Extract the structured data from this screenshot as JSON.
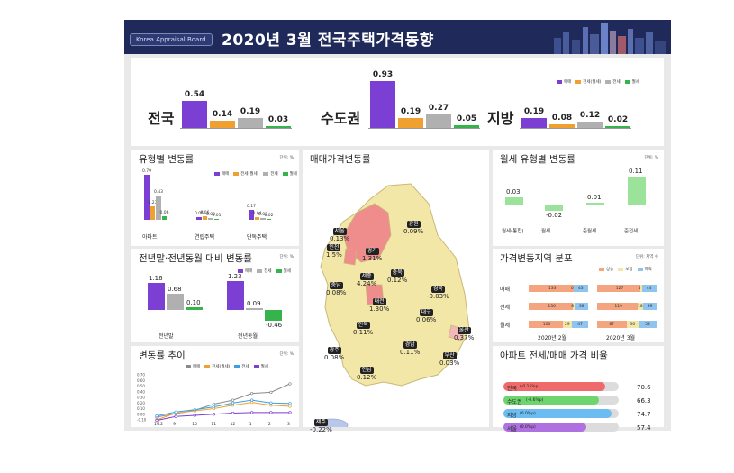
{
  "header": {
    "brand": "Korea Appraisal Board",
    "title": "2020년 3월  전국주택가격동향"
  },
  "summary": {
    "legend": [
      "매매",
      "전세(월세)",
      "전세",
      "월세"
    ],
    "colors": {
      "sale": "#7b3fd4",
      "rent_conv": "#f0a030",
      "jeonse": "#b0b0b0",
      "monthly": "#36b34a"
    },
    "groups": [
      {
        "name": "전국",
        "values": [
          0.54,
          0.14,
          0.19,
          0.03
        ],
        "labels": [
          "0.54",
          "0.14",
          "0.19",
          "0.03"
        ]
      },
      {
        "name": "수도권",
        "values": [
          0.93,
          0.19,
          0.27,
          0.05
        ],
        "labels": [
          "0.93",
          "0.19",
          "0.27",
          "0.05"
        ]
      },
      {
        "name": "지방",
        "values": [
          0.19,
          0.08,
          0.12,
          0.02
        ],
        "labels": [
          "0.19",
          "0.08",
          "0.12",
          "0.02"
        ]
      }
    ]
  },
  "type_change": {
    "title": "유형별 변동률",
    "unit": "단위: %",
    "legend": [
      "매매",
      "전세(월세)",
      "전세",
      "월세"
    ],
    "categories": [
      "아파트",
      "연립주택",
      "단독주택"
    ],
    "series": [
      {
        "values": [
          0.79,
          0.05,
          0.17
        ],
        "labels": [
          "0.79",
          "0.05",
          "0.17"
        ]
      },
      {
        "values": [
          0.23,
          0.06,
          0.04
        ],
        "labels": [
          "0.23",
          "0.06",
          "0.04"
        ]
      },
      {
        "values": [
          0.43,
          0.03,
          0.03
        ],
        "labels": [
          "0.43",
          "0.03",
          "0.03"
        ]
      },
      {
        "values": [
          0.06,
          0.01,
          0.02
        ],
        "labels": [
          "0.06",
          "0.01",
          "0.02"
        ]
      }
    ]
  },
  "compare": {
    "title": "전년말·전년동월 대비 변동률",
    "unit": "단위: %",
    "legend": [
      "매매",
      "전세",
      "월세"
    ],
    "categories": [
      "전년말",
      "전년동월"
    ],
    "series": [
      {
        "values": [
          1.16,
          1.23
        ],
        "labels": [
          "1.16",
          "1.23"
        ]
      },
      {
        "values": [
          0.68,
          0.09
        ],
        "labels": [
          "0.68",
          "0.09"
        ]
      },
      {
        "values": [
          0.1,
          -0.46
        ],
        "labels": [
          "0.10",
          "-0.46"
        ]
      }
    ]
  },
  "trend": {
    "title": "변동률 추이",
    "unit": "단위: %",
    "legend": [
      "매매",
      "전세(월세)",
      "전세",
      "월세"
    ],
    "x": [
      "19.2",
      "9",
      "10",
      "11",
      "12",
      "1",
      "2",
      "3"
    ],
    "y_ticks": [
      "0.70",
      "0.60",
      "0.50",
      "0.40",
      "0.30",
      "0.20",
      "0.10",
      "0.00",
      "-0.10"
    ],
    "series": [
      {
        "name": "매매",
        "values": [
          -0.05,
          0.01,
          0.07,
          0.18,
          0.25,
          0.37,
          0.39,
          0.54
        ]
      },
      {
        "name": "전세(월세)",
        "values": [
          -0.1,
          0.02,
          0.06,
          0.1,
          0.16,
          0.21,
          0.16,
          0.14
        ]
      },
      {
        "name": "전세",
        "values": [
          -0.03,
          0.04,
          0.08,
          0.13,
          0.2,
          0.25,
          0.2,
          0.19
        ]
      },
      {
        "name": "월세",
        "values": [
          -0.11,
          -0.04,
          -0.02,
          0.0,
          0.02,
          0.03,
          0.03,
          0.03
        ]
      }
    ]
  },
  "map": {
    "title": "매매가격변동률",
    "regions": [
      {
        "name": "서울",
        "value": "0.13%"
      },
      {
        "name": "인천",
        "value": "1.5%"
      },
      {
        "name": "경기",
        "value": "1.31%"
      },
      {
        "name": "강원",
        "value": "0.09%"
      },
      {
        "name": "충북",
        "value": "0.12%"
      },
      {
        "name": "세종",
        "value": "4.24%"
      },
      {
        "name": "충남",
        "value": "0.08%"
      },
      {
        "name": "대전",
        "value": "1.30%"
      },
      {
        "name": "경북",
        "value": "-0.03%"
      },
      {
        "name": "대구",
        "value": "0.06%"
      },
      {
        "name": "전북",
        "value": "0.11%"
      },
      {
        "name": "울산",
        "value": "0.37%"
      },
      {
        "name": "경남",
        "value": "0.11%"
      },
      {
        "name": "광주",
        "value": "0.08%"
      },
      {
        "name": "부산",
        "value": "0.03%"
      },
      {
        "name": "전남",
        "value": "0.12%"
      },
      {
        "name": "제주",
        "value": "-0.22%"
      }
    ]
  },
  "monthly_rent": {
    "title": "월세 유형별 변동률",
    "unit": "단위: %",
    "categories": [
      "월세(통합)",
      "월세",
      "준월세",
      "준전세"
    ],
    "values": [
      0.03,
      -0.02,
      0.01,
      0.11
    ],
    "labels": [
      "0.03",
      "-0.02",
      "0.01",
      "0.11"
    ]
  },
  "distribution": {
    "title": "가격변동지역 분포",
    "unit": "단위: 지역 수",
    "legend": [
      "상승",
      "보합",
      "하락"
    ],
    "rows": [
      "매매",
      "전세",
      "월세"
    ],
    "periods": [
      "2020년 2월",
      "2020년 3월"
    ],
    "feb": [
      [
        "133",
        "0",
        "43"
      ],
      [
        "130",
        "8",
        "38"
      ],
      [
        "100",
        "29",
        "47"
      ]
    ],
    "mar": [
      [
        "127",
        "5",
        "44"
      ],
      [
        "119",
        "18",
        "39"
      ],
      [
        "87",
        "36",
        "53"
      ]
    ]
  },
  "ratio": {
    "title": "아파트 전세/매매 가격 비율",
    "items": [
      {
        "name": "전국",
        "delta": "(-0.15%p)",
        "value": 70.6,
        "label": "70.6",
        "color": "#ef6b6b"
      },
      {
        "name": "수도권",
        "delta": "(-0.6%p)",
        "value": 66.3,
        "label": "66.3",
        "color": "#6ed46e"
      },
      {
        "name": "지방",
        "delta": "(0.0%p)",
        "value": 74.7,
        "label": "74.7",
        "color": "#6bbcf0"
      },
      {
        "name": "서울",
        "delta": "(0.0%p)",
        "value": 57.4,
        "label": "57.4",
        "color": "#b071e0"
      }
    ]
  }
}
